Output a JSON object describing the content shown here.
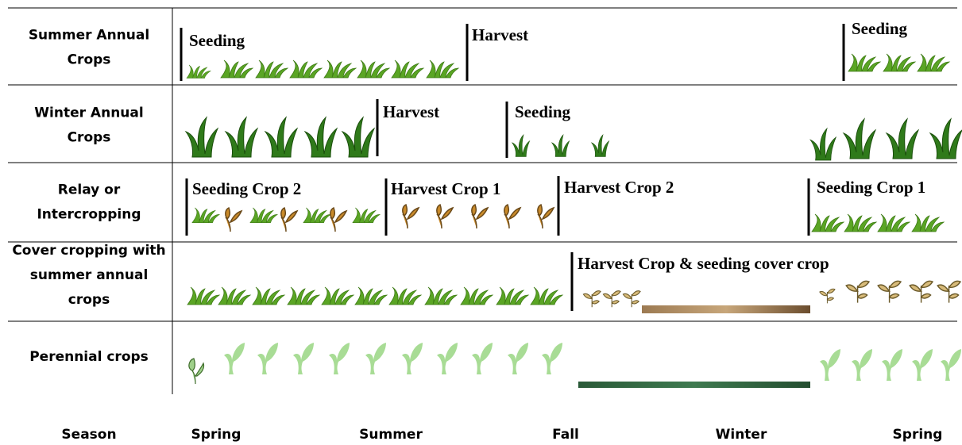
{
  "rows": [
    {
      "label": "Summer Annual Crops",
      "annotations": [
        "Seeding",
        "Harvest",
        "Seeding"
      ]
    },
    {
      "label": "Winter Annual Crops",
      "annotations": [
        "Harvest",
        "Seeding"
      ]
    },
    {
      "label": "Relay or Intercropping",
      "annotations": [
        "Seeding Crop 2",
        "Harvest Crop 1",
        "Harvest Crop 2",
        "Seeding Crop 1"
      ]
    },
    {
      "label": "Cover cropping with summer annual crops",
      "annotations": [
        "Harvest Crop & seeding cover crop"
      ]
    },
    {
      "label": "Perennial crops",
      "annotations": []
    }
  ],
  "season_axis": {
    "label": "Season",
    "seasons": [
      "Spring",
      "Summer",
      "Fall",
      "Winter",
      "Spring"
    ]
  }
}
